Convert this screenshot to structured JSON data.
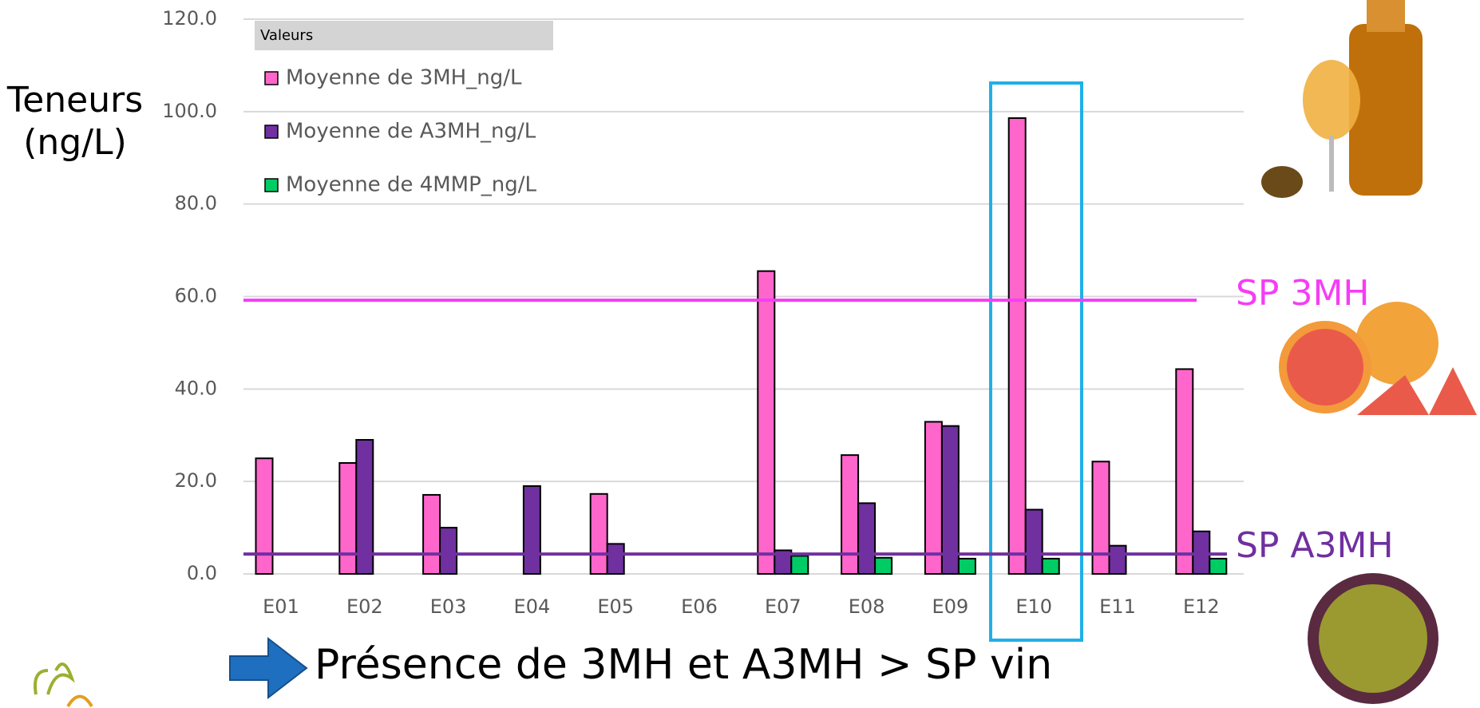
{
  "chart_data": {
    "type": "bar",
    "y_label": "Teneurs (ng/L)",
    "legend_title": "Valeurs",
    "categories": [
      "E01",
      "E02",
      "E03",
      "E04",
      "E05",
      "E06",
      "E07",
      "E08",
      "E09",
      "E10",
      "E11",
      "E12"
    ],
    "series": [
      {
        "name": "Moyenne de 3MH_ng/L",
        "color": "#ff66cc",
        "values": [
          25.0,
          24.0,
          17.1,
          null,
          17.3,
          null,
          65.5,
          25.7,
          32.9,
          98.6,
          24.3,
          44.3
        ]
      },
      {
        "name": "Moyenne de A3MH_ng/L",
        "color": "#7030a0",
        "values": [
          null,
          29.0,
          10.0,
          19.0,
          6.5,
          null,
          5.1,
          15.3,
          32.0,
          13.9,
          6.1,
          9.2
        ]
      },
      {
        "name": "Moyenne de 4MMP_ng/L",
        "color": "#00cc66",
        "values": [
          null,
          null,
          null,
          null,
          null,
          null,
          3.9,
          3.5,
          3.3,
          3.3,
          null,
          3.3
        ]
      }
    ],
    "reference_lines": [
      {
        "label": "SP 3MH",
        "value": 59.2,
        "color": "#f53df5"
      },
      {
        "label": "SP A3MH",
        "value": 4.3,
        "color": "#7030a0"
      }
    ],
    "ylim": [
      0,
      120
    ],
    "yticks": [
      {
        "value": 0,
        "label": "0.0"
      },
      {
        "value": 20,
        "label": "20.0"
      },
      {
        "value": 40,
        "label": "40.0"
      },
      {
        "value": 60,
        "label": "60.0"
      },
      {
        "value": 80,
        "label": "80.0"
      },
      {
        "value": 100,
        "label": "100.0"
      },
      {
        "value": 120,
        "label": "120.0"
      }
    ],
    "grid": true,
    "annotation": "Présence de 3MH et A3MH > SP vin"
  }
}
